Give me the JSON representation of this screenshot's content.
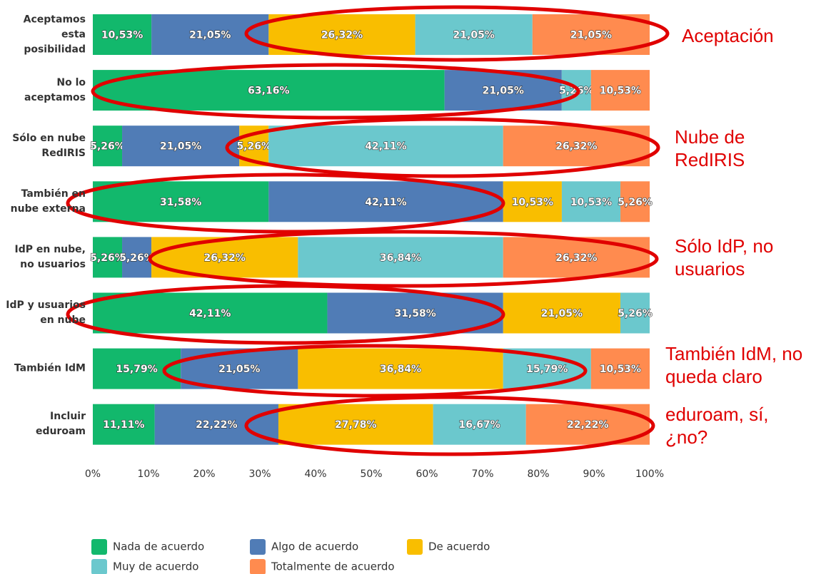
{
  "chart_data": {
    "type": "stacked-barh",
    "categories": [
      "Aceptamos\nesta\nposibilidad",
      "No lo\naceptamos",
      "Sólo en nube\nRedIRIS",
      "También en\nnube externa",
      "IdP en nube,\nno usuarios",
      "IdP y usuarios\nen nube",
      "También IdM",
      "Incluir\neduroam"
    ],
    "series": [
      {
        "name": "Nada de acuerdo",
        "color": "#12b86c",
        "values": [
          10.53,
          63.16,
          5.26,
          31.58,
          5.26,
          42.11,
          15.79,
          11.11
        ],
        "value_labels": [
          "10,53%",
          "63,16%",
          "5,26%",
          "31,58%",
          "5,26%",
          "42,11%",
          "15,79%",
          "11,11%"
        ]
      },
      {
        "name": "Algo de acuerdo",
        "color": "#507cb6",
        "values": [
          21.05,
          21.05,
          21.05,
          42.11,
          5.26,
          31.58,
          21.05,
          22.22
        ],
        "value_labels": [
          "21,05%",
          "21,05%",
          "21,05%",
          "42,11%",
          "5,26%",
          "31,58%",
          "21,05%",
          "22,22%"
        ]
      },
      {
        "name": "De acuerdo",
        "color": "#f9be00",
        "values": [
          26.32,
          0,
          5.26,
          10.53,
          26.32,
          21.05,
          36.84,
          27.78
        ],
        "value_labels": [
          "26,32%",
          null,
          "5,26%",
          "10,53%",
          "26,32%",
          "21,05%",
          "36,84%",
          "27,78%"
        ]
      },
      {
        "name": "Muy de acuerdo",
        "color": "#6bc8cd",
        "values": [
          21.05,
          5.26,
          42.11,
          10.53,
          36.84,
          5.26,
          15.79,
          16.67
        ],
        "value_labels": [
          "21,05%",
          "5,26%",
          "42,11%",
          "10,53%",
          "36,84%",
          "5,26%",
          "15,79%",
          "16,67%"
        ]
      },
      {
        "name": "Totalmente de acuerdo",
        "color": "#ff8b4f",
        "values": [
          21.05,
          10.53,
          26.32,
          5.26,
          26.32,
          0,
          10.53,
          22.22
        ],
        "value_labels": [
          "21,05%",
          "10,53%",
          "26,32%",
          "5,26%",
          "26,32%",
          null,
          "10,53%",
          "22,22%"
        ]
      }
    ],
    "xlim": [
      0,
      100
    ],
    "xticks": [
      {
        "value": 0,
        "label": "0%"
      },
      {
        "value": 10,
        "label": "10%"
      },
      {
        "value": 20,
        "label": "20%"
      },
      {
        "value": 30,
        "label": "30%"
      },
      {
        "value": 40,
        "label": "40%"
      },
      {
        "value": 50,
        "label": "50%"
      },
      {
        "value": 60,
        "label": "60%"
      },
      {
        "value": 70,
        "label": "70%"
      },
      {
        "value": 80,
        "label": "80%"
      },
      {
        "value": 90,
        "label": "90%"
      },
      {
        "value": 100,
        "label": "100%"
      }
    ],
    "legend": "bottom-left",
    "annotations": [
      "Aceptación",
      "Nube de\nRedIRIS",
      "Sólo IdP, no\nusuarios",
      "También IdM, no\nqueda claro",
      "eduroam, sí,\n¿no?"
    ]
  }
}
